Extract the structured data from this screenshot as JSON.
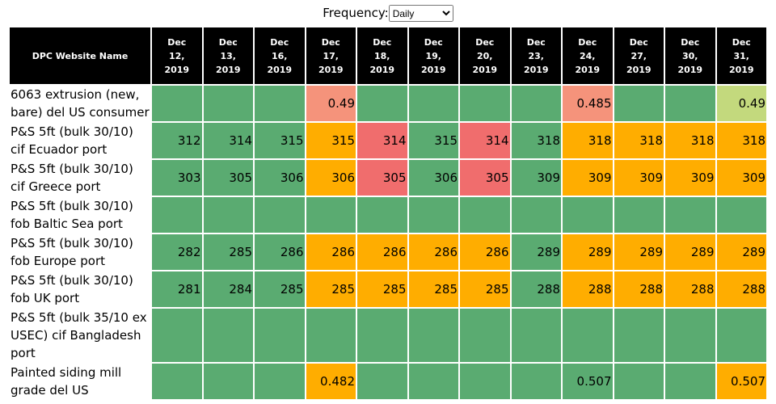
{
  "filter": {
    "label": "Frequency:",
    "selected": "Daily"
  },
  "table": {
    "corner": "DPC Website Name",
    "columns": [
      "Dec 12, 2019",
      "Dec 13, 2019",
      "Dec 16, 2019",
      "Dec 17, 2019",
      "Dec 18, 2019",
      "Dec 19, 2019",
      "Dec 20, 2019",
      "Dec 23, 2019",
      "Dec 24, 2019",
      "Dec 27, 2019",
      "Dec 30, 2019",
      "Dec 31, 2019"
    ],
    "rows": [
      {
        "name": "6063 extrusion (new, bare) del US consumer",
        "values": [
          null,
          null,
          null,
          0.49,
          null,
          null,
          null,
          null,
          0.485,
          null,
          null,
          0.49
        ],
        "colors": [
          "#5aab71",
          "#5aab71",
          "#5aab71",
          "#f5937b",
          "#5aab71",
          "#5aab71",
          "#5aab71",
          "#5aab71",
          "#f5937b",
          "#5aab71",
          "#5aab71",
          "#c3d97d"
        ]
      },
      {
        "name": "P&S 5ft (bulk 30/10) cif Ecuador port",
        "values": [
          312,
          314,
          315,
          315,
          314,
          315,
          314,
          318,
          318,
          318,
          318,
          318
        ],
        "colors": [
          "#5aab71",
          "#5aab71",
          "#5aab71",
          "#ffad00",
          "#f06d6d",
          "#5aab71",
          "#f06d6d",
          "#5aab71",
          "#ffad00",
          "#ffad00",
          "#ffad00",
          "#ffad00"
        ]
      },
      {
        "name": "P&S 5ft (bulk 30/10) cif Greece port",
        "values": [
          303,
          305,
          306,
          306,
          305,
          306,
          305,
          309,
          309,
          309,
          309,
          309
        ],
        "colors": [
          "#5aab71",
          "#5aab71",
          "#5aab71",
          "#ffad00",
          "#f06d6d",
          "#5aab71",
          "#f06d6d",
          "#5aab71",
          "#ffad00",
          "#ffad00",
          "#ffad00",
          "#ffad00"
        ]
      },
      {
        "name": "P&S 5ft (bulk 30/10) fob Baltic Sea port",
        "values": [
          null,
          null,
          null,
          null,
          null,
          null,
          null,
          null,
          null,
          null,
          null,
          null
        ],
        "colors": [
          "#5aab71",
          "#5aab71",
          "#5aab71",
          "#5aab71",
          "#5aab71",
          "#5aab71",
          "#5aab71",
          "#5aab71",
          "#5aab71",
          "#5aab71",
          "#5aab71",
          "#5aab71"
        ]
      },
      {
        "name": "P&S 5ft (bulk 30/10) fob Europe port",
        "values": [
          282,
          285,
          286,
          286,
          286,
          286,
          286,
          289,
          289,
          289,
          289,
          289
        ],
        "colors": [
          "#5aab71",
          "#5aab71",
          "#5aab71",
          "#ffad00",
          "#ffad00",
          "#ffad00",
          "#ffad00",
          "#5aab71",
          "#ffad00",
          "#ffad00",
          "#ffad00",
          "#ffad00"
        ]
      },
      {
        "name": "P&S 5ft (bulk 30/10) fob UK port",
        "values": [
          281,
          284,
          285,
          285,
          285,
          285,
          285,
          288,
          288,
          288,
          288,
          288
        ],
        "colors": [
          "#5aab71",
          "#5aab71",
          "#5aab71",
          "#ffad00",
          "#ffad00",
          "#ffad00",
          "#ffad00",
          "#5aab71",
          "#ffad00",
          "#ffad00",
          "#ffad00",
          "#ffad00"
        ]
      },
      {
        "name": "P&S 5ft (bulk 35/10 ex USEC) cif Bangladesh port",
        "values": [
          null,
          null,
          null,
          null,
          null,
          null,
          null,
          null,
          null,
          null,
          null,
          null
        ],
        "colors": [
          "#5aab71",
          "#5aab71",
          "#5aab71",
          "#5aab71",
          "#5aab71",
          "#5aab71",
          "#5aab71",
          "#5aab71",
          "#5aab71",
          "#5aab71",
          "#5aab71",
          "#5aab71"
        ]
      },
      {
        "name": "Painted siding mill grade del US",
        "values": [
          null,
          null,
          null,
          0.482,
          null,
          null,
          null,
          null,
          0.507,
          null,
          null,
          0.507
        ],
        "colors": [
          "#5aab71",
          "#5aab71",
          "#5aab71",
          "#ffad00",
          "#5aab71",
          "#5aab71",
          "#5aab71",
          "#5aab71",
          "#5aab71",
          "#5aab71",
          "#5aab71",
          "#ffad00"
        ]
      }
    ]
  }
}
